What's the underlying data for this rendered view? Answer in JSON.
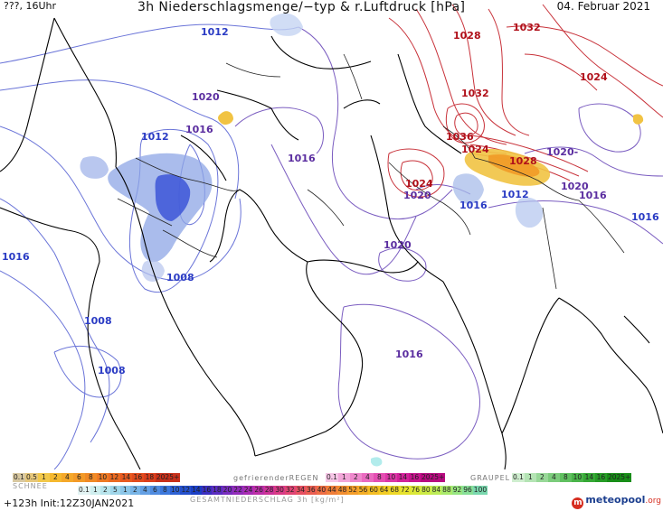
{
  "header": {
    "left": "???, 16Uhr",
    "title": "3h Niederschlagsmenge/−typ & r.Luftdruck [hPa]",
    "date": "04. Februar 2021"
  },
  "isobar_labels": [
    {
      "text": "1012",
      "color": "blue"
    },
    {
      "text": "1020",
      "color": "purple"
    },
    {
      "text": "1016",
      "color": "purple"
    },
    {
      "text": "1012",
      "color": "blue"
    },
    {
      "text": "1016",
      "color": "purple"
    },
    {
      "text": "1016",
      "color": "blue"
    },
    {
      "text": "1008",
      "color": "blue"
    },
    {
      "text": "1008",
      "color": "blue"
    },
    {
      "text": "1008",
      "color": "blue"
    },
    {
      "text": "1020",
      "color": "purple"
    },
    {
      "text": "1016",
      "color": "purple"
    },
    {
      "text": "1028",
      "color": "red"
    },
    {
      "text": "1032",
      "color": "red"
    },
    {
      "text": "1024",
      "color": "red"
    },
    {
      "text": "1032",
      "color": "red"
    },
    {
      "text": "1036",
      "color": "red"
    },
    {
      "text": "1024",
      "color": "red"
    },
    {
      "text": "1028",
      "color": "red"
    },
    {
      "text": "1024",
      "color": "red"
    },
    {
      "text": "1020",
      "color": "purple"
    },
    {
      "text": "1016",
      "color": "blue"
    },
    {
      "text": "1012",
      "color": "blue"
    },
    {
      "text": "1020-",
      "color": "purple"
    },
    {
      "text": "1020",
      "color": "purple"
    },
    {
      "text": "1016",
      "color": "purple"
    },
    {
      "text": "1016",
      "color": "blue"
    },
    {
      "text": "1016",
      "color": "purple"
    }
  ],
  "legend": {
    "snow": {
      "label": "SCHNEE",
      "items": [
        {
          "text": "0.1",
          "bg": "#d8c8a0"
        },
        {
          "text": "0.5",
          "bg": "#e6c77a"
        },
        {
          "text": "1",
          "bg": "#f2c84a"
        },
        {
          "text": "2",
          "bg": "#f5b82e"
        },
        {
          "text": "4",
          "bg": "#f5a82a"
        },
        {
          "text": "6",
          "bg": "#f39a28"
        },
        {
          "text": "8",
          "bg": "#f08a26"
        },
        {
          "text": "10",
          "bg": "#ee7a24"
        },
        {
          "text": "12",
          "bg": "#eb6a22"
        },
        {
          "text": "14",
          "bg": "#e85a20"
        },
        {
          "text": "16",
          "bg": "#e24c1e"
        },
        {
          "text": "18",
          "bg": "#dc3e1c"
        },
        {
          "text": "2025+",
          "bg": "#c8301a"
        }
      ]
    },
    "freezing_rain": {
      "label": "gefrierenderREGEN",
      "items": [
        {
          "text": "0.1",
          "bg": "#f6c6e6"
        },
        {
          "text": "1",
          "bg": "#f2a6d8"
        },
        {
          "text": "2",
          "bg": "#ee88cc"
        },
        {
          "text": "4",
          "bg": "#ea6ac0"
        },
        {
          "text": "8",
          "bg": "#e44eb2"
        },
        {
          "text": "10",
          "bg": "#dc36a6"
        },
        {
          "text": "14",
          "bg": "#d2229a"
        },
        {
          "text": "16",
          "bg": "#c8148e"
        },
        {
          "text": "2025+",
          "bg": "#b80a80"
        }
      ]
    },
    "graupel": {
      "label": "GRAUPEL",
      "items": [
        {
          "text": "0.1",
          "bg": "#cfeecf"
        },
        {
          "text": "1",
          "bg": "#b4e4b4"
        },
        {
          "text": "2",
          "bg": "#98d898"
        },
        {
          "text": "4",
          "bg": "#7ccc7c"
        },
        {
          "text": "8",
          "bg": "#60c060"
        },
        {
          "text": "10",
          "bg": "#4ab44a"
        },
        {
          "text": "14",
          "bg": "#36a836"
        },
        {
          "text": "16",
          "bg": "#269c26"
        },
        {
          "text": "2025+",
          "bg": "#188e18"
        }
      ]
    },
    "total": {
      "label": "GESAMTNIEDERSCHLAG 3h [kg/m²]",
      "items": [
        {
          "text": "0.1",
          "bg": "#e4f4f4"
        },
        {
          "text": "1",
          "bg": "#cfeeee"
        },
        {
          "text": "2",
          "bg": "#b8e4ec"
        },
        {
          "text": "5",
          "bg": "#a0d6ea"
        },
        {
          "text": "1",
          "bg": "#8cc6e8"
        },
        {
          "text": "2",
          "bg": "#78b4e6"
        },
        {
          "text": "4",
          "bg": "#64a0e4"
        },
        {
          "text": "6",
          "bg": "#508ce0"
        },
        {
          "text": "8",
          "bg": "#3c78dc"
        },
        {
          "text": "10",
          "bg": "#2e62d4"
        },
        {
          "text": "12",
          "bg": "#2450cc"
        },
        {
          "text": "14",
          "bg": "#1a3ec4"
        },
        {
          "text": "16",
          "bg": "#3a2ec0"
        },
        {
          "text": "18",
          "bg": "#5a2cc0"
        },
        {
          "text": "20",
          "bg": "#782cbe"
        },
        {
          "text": "22",
          "bg": "#922cba"
        },
        {
          "text": "24",
          "bg": "#a82cb4"
        },
        {
          "text": "26",
          "bg": "#bc2ea8"
        },
        {
          "text": "28",
          "bg": "#cc3298"
        },
        {
          "text": "30",
          "bg": "#d83a86"
        },
        {
          "text": "32",
          "bg": "#e04474"
        },
        {
          "text": "34",
          "bg": "#e65062"
        },
        {
          "text": "36",
          "bg": "#ea5e52"
        },
        {
          "text": "40",
          "bg": "#ee6e44"
        },
        {
          "text": "44",
          "bg": "#f07e38"
        },
        {
          "text": "48",
          "bg": "#f28e30"
        },
        {
          "text": "52",
          "bg": "#f49e2a"
        },
        {
          "text": "56",
          "bg": "#f4ae26"
        },
        {
          "text": "60",
          "bg": "#f4be24"
        },
        {
          "text": "64",
          "bg": "#f2cc24"
        },
        {
          "text": "68",
          "bg": "#eed828"
        },
        {
          "text": "72",
          "bg": "#e6e22e"
        },
        {
          "text": "76",
          "bg": "#dae838"
        },
        {
          "text": "80",
          "bg": "#cceb46"
        },
        {
          "text": "84",
          "bg": "#bcec58"
        },
        {
          "text": "88",
          "bg": "#aaea6c"
        },
        {
          "text": "92",
          "bg": "#98e682"
        },
        {
          "text": "96",
          "bg": "#88e098"
        },
        {
          "text": "100",
          "bg": "#7ad8ae"
        }
      ]
    }
  },
  "footer": {
    "run": "+123h  Init:12Z30JAN2021",
    "logo": "meteopool",
    "logo_suffix": ".org",
    "logo_icon": "m"
  }
}
